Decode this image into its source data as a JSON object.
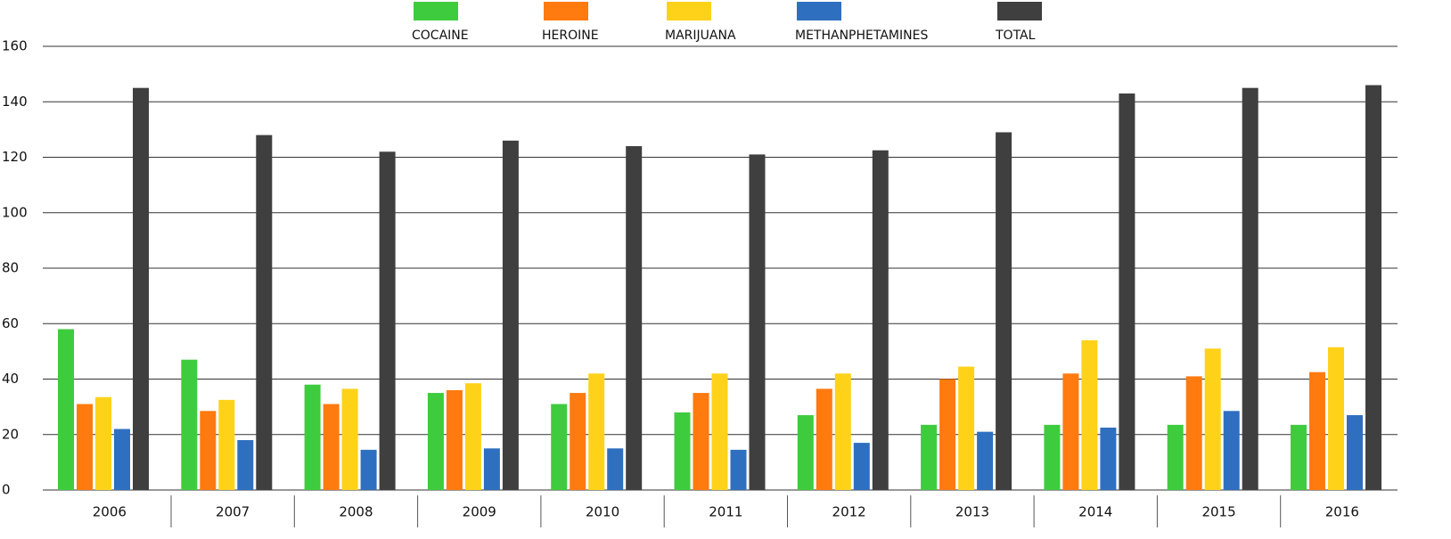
{
  "chart_data": {
    "type": "bar",
    "categories": [
      "2006",
      "2007",
      "2008",
      "2009",
      "2010",
      "2011",
      "2012",
      "2013",
      "2014",
      "2015",
      "2016"
    ],
    "series": [
      {
        "name": "COCAINE",
        "color": "#3ecc3e",
        "values": [
          58,
          47,
          38,
          35,
          31,
          28,
          27,
          23.5,
          23.5,
          23.5,
          23.5
        ]
      },
      {
        "name": "HEROINE",
        "color": "#ff7a0f",
        "values": [
          31,
          28.5,
          31,
          36,
          35,
          35,
          36.5,
          40,
          42,
          41,
          42.5
        ]
      },
      {
        "name": "MARIJUANA",
        "color": "#ffd21a",
        "values": [
          33.5,
          32.5,
          36.5,
          38.5,
          42,
          42,
          42,
          44.5,
          54,
          51,
          51.5
        ]
      },
      {
        "name": "METHANPHETAMINES",
        "color": "#2f6fc0",
        "values": [
          22,
          18,
          14.5,
          15,
          15,
          14.5,
          17,
          21,
          22.5,
          28.5,
          27
        ]
      },
      {
        "name": "TOTAL",
        "color": "#3f3f3f",
        "values": [
          145,
          128,
          122,
          126,
          124,
          121,
          122.5,
          129,
          143,
          145,
          146
        ]
      }
    ],
    "ylim": [
      0,
      160
    ],
    "yticks": [
      0,
      20,
      40,
      60,
      80,
      100,
      120,
      140,
      160
    ],
    "grid": true
  }
}
